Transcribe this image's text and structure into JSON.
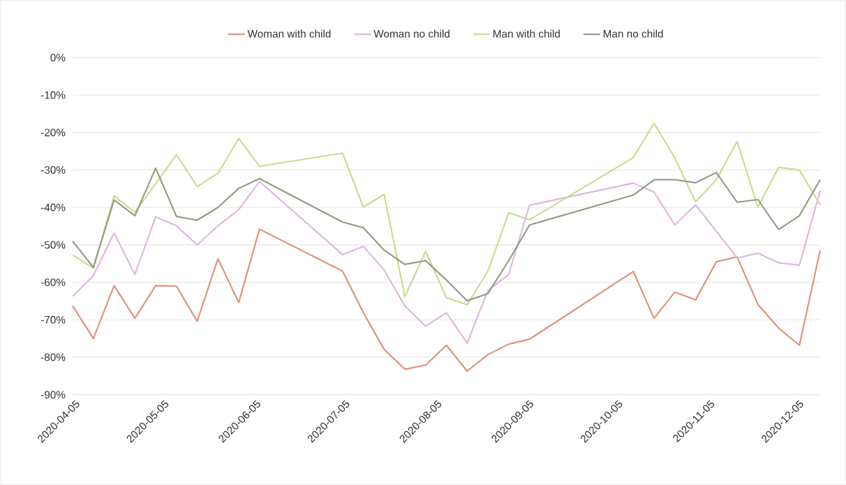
{
  "chart_data": {
    "type": "line",
    "x": [
      "2020-04-05",
      "2020-04-12",
      "2020-04-19",
      "2020-04-26",
      "2020-05-03",
      "2020-05-10",
      "2020-05-17",
      "2020-05-24",
      "2020-05-31",
      "2020-06-07",
      "2020-07-05",
      "2020-07-12",
      "2020-07-19",
      "2020-07-26",
      "2020-08-02",
      "2020-08-09",
      "2020-08-16",
      "2020-08-23",
      "2020-08-30",
      "2020-09-06",
      "2020-10-11",
      "2020-10-18",
      "2020-10-25",
      "2020-11-01",
      "2020-11-08",
      "2020-11-15",
      "2020-11-22",
      "2020-11-29",
      "2020-12-06",
      "2020-12-13"
    ],
    "series": [
      {
        "name": "Woman with child",
        "color": "#e0907a",
        "values": [
          -66.3,
          -75.0,
          -60.9,
          -69.6,
          -60.9,
          -61.0,
          -70.4,
          -53.7,
          -65.4,
          -45.8,
          -57.0,
          -68.1,
          -77.9,
          -83.2,
          -82.1,
          -76.8,
          -83.7,
          -79.3,
          -76.5,
          -75.2,
          -57.1,
          -69.6,
          -62.6,
          -64.7,
          -54.5,
          -53.2,
          -65.9,
          -72.2,
          -76.8,
          -51.4
        ]
      },
      {
        "name": "Woman no child",
        "color": "#dcb8dc",
        "values": [
          -63.7,
          -58.2,
          -46.8,
          -57.9,
          -42.5,
          -44.9,
          -50.0,
          -44.9,
          -40.6,
          -33.1,
          -52.6,
          -50.4,
          -56.7,
          -66.3,
          -71.7,
          -68.1,
          -76.2,
          -62.2,
          -57.9,
          -39.4,
          -33.5,
          -35.9,
          -44.7,
          -39.3,
          -46.4,
          -53.5,
          -52.2,
          -54.8,
          -55.4,
          -35.5
        ]
      },
      {
        "name": "Man with child",
        "color": "#c8dc90",
        "values": [
          -52.7,
          -56.2,
          -36.9,
          -41.3,
          -33.7,
          -25.9,
          -34.4,
          -30.9,
          -21.6,
          -29.0,
          -25.5,
          -39.9,
          -36.5,
          -63.8,
          -51.7,
          -64.1,
          -66.0,
          -57.0,
          -41.4,
          -43.3,
          -26.7,
          -17.5,
          -26.8,
          -38.5,
          -32.6,
          -22.4,
          -39.9,
          -29.3,
          -30.0,
          -39.3
        ]
      },
      {
        "name": "Man no child",
        "color": "#909c80",
        "values": [
          -49.0,
          -56.0,
          -38.0,
          -42.2,
          -29.5,
          -42.4,
          -43.4,
          -40.0,
          -34.9,
          -32.3,
          -43.9,
          -45.4,
          -51.4,
          -55.2,
          -54.2,
          -59.4,
          -64.9,
          -63.0,
          -54.2,
          -44.7,
          -36.7,
          -32.6,
          -32.6,
          -33.4,
          -30.7,
          -38.6,
          -37.9,
          -45.9,
          -42.2,
          -32.6
        ]
      }
    ],
    "xlim": [
      "2020-04-05",
      "2020-12-13"
    ],
    "xticks": [
      "2020-04-05",
      "2020-05-05",
      "2020-06-05",
      "2020-07-05",
      "2020-08-05",
      "2020-09-05",
      "2020-10-05",
      "2020-11-05",
      "2020-12-05"
    ],
    "ylim": [
      -90,
      0
    ],
    "yticks": [
      {
        "value": -90,
        "label": "-90%"
      },
      {
        "value": -80,
        "label": "-80%"
      },
      {
        "value": -70,
        "label": "-70%"
      },
      {
        "value": -60,
        "label": "-60%"
      },
      {
        "value": -50,
        "label": "-50%"
      },
      {
        "value": -40,
        "label": "-40%"
      },
      {
        "value": -30,
        "label": "-30%"
      },
      {
        "value": -20,
        "label": "-20%"
      },
      {
        "value": -10,
        "label": "-10%"
      },
      {
        "value": 0,
        "label": "0%"
      }
    ],
    "grid": "y",
    "legend": "top",
    "marker": "none",
    "line_style": "solid"
  }
}
